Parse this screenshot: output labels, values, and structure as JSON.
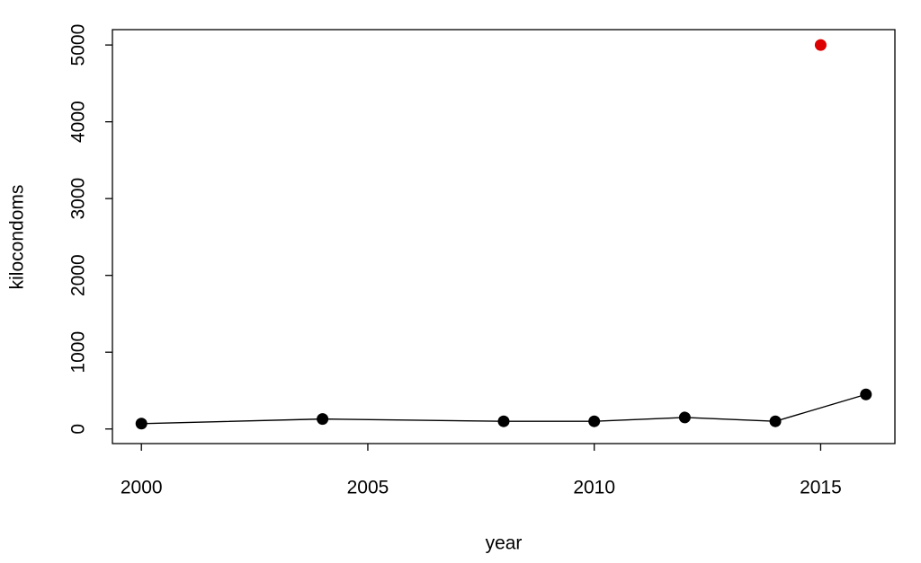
{
  "chart_data": {
    "type": "line",
    "x_label": "year",
    "y_label": "kilocondoms",
    "series": [
      {
        "color": "#000000",
        "mode": "lines+markers",
        "x": [
          2000,
          2004,
          2008,
          2010,
          2012,
          2014,
          2016
        ],
        "values": [
          70,
          130,
          100,
          100,
          150,
          100,
          450
        ]
      },
      {
        "color": "#dd0000",
        "mode": "markers",
        "x": [
          2015
        ],
        "values": [
          5000
        ]
      }
    ],
    "xlim": [
      1999.36,
      2016.64
    ],
    "xticks": [
      2000,
      2005,
      2010,
      2015
    ],
    "ylim": [
      -190,
      5200
    ],
    "yticks": [
      0,
      1000,
      2000,
      3000,
      4000,
      5000
    ],
    "grid": false
  }
}
